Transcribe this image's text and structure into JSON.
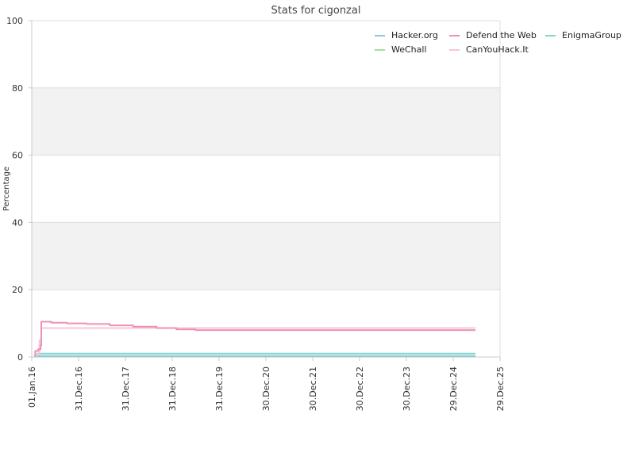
{
  "chart_data": {
    "type": "line",
    "title": "Stats for cigonzal",
    "xlabel": "",
    "ylabel": "Percentage",
    "ylim": [
      0,
      100
    ],
    "y_ticks": [
      0,
      20,
      40,
      60,
      80,
      100
    ],
    "x_ticks": [
      "01.Jan.16",
      "31.Dec.16",
      "31.Dec.17",
      "31.Dec.18",
      "31.Dec.19",
      "30.Dec.20",
      "30.Dec.21",
      "30.Dec.22",
      "30.Dec.23",
      "29.Dec.24",
      "29.Dec.25"
    ],
    "grid": true,
    "legend_position": "top-right",
    "series": [
      {
        "name": "Hacker.org",
        "color": "#8ec3e8",
        "points": [
          [
            "2016-01-20",
            0.3
          ],
          [
            "2025-06-20",
            0.3
          ]
        ]
      },
      {
        "name": "Defend the Web",
        "color": "#ee90b8",
        "points": [
          [
            "2016-01-20",
            0.5
          ],
          [
            "2016-01-28",
            1.8
          ],
          [
            "2016-02-20",
            2.3
          ],
          [
            "2016-03-10",
            3.5
          ],
          [
            "2016-03-15",
            10.5
          ],
          [
            "2016-06-01",
            10.2
          ],
          [
            "2016-10-01",
            10.0
          ],
          [
            "2017-03-01",
            9.8
          ],
          [
            "2017-09-01",
            9.4
          ],
          [
            "2018-03-01",
            9.0
          ],
          [
            "2018-09-01",
            8.6
          ],
          [
            "2019-02-01",
            8.2
          ],
          [
            "2019-07-01",
            8.0
          ],
          [
            "2020-06-01",
            8.0
          ],
          [
            "2025-06-20",
            8.0
          ]
        ]
      },
      {
        "name": "EnigmaGroup",
        "color": "#7fd8c6",
        "points": [
          [
            "2016-01-20",
            0.5
          ],
          [
            "2016-02-15",
            1.0
          ],
          [
            "2025-06-20",
            1.0
          ]
        ]
      },
      {
        "name": "WeChall",
        "color": "#9ee39e",
        "points": [
          [
            "2016-01-20",
            0.2
          ],
          [
            "2025-06-20",
            0.2
          ]
        ]
      },
      {
        "name": "CanYouHack.It",
        "color": "#f7c6d8",
        "points": [
          [
            "2016-01-20",
            0.5
          ],
          [
            "2016-02-15",
            0.8
          ],
          [
            "2016-03-01",
            5.0
          ],
          [
            "2016-03-15",
            8.6
          ],
          [
            "2025-06-20",
            8.6
          ]
        ]
      }
    ],
    "legend_order": [
      "Hacker.org",
      "Defend the Web",
      "EnigmaGroup",
      "WeChall",
      "CanYouHack.It"
    ],
    "band_color": "#f2f2f2",
    "grid_color": "#dddddd",
    "axis_color": "#c8c8c8"
  }
}
